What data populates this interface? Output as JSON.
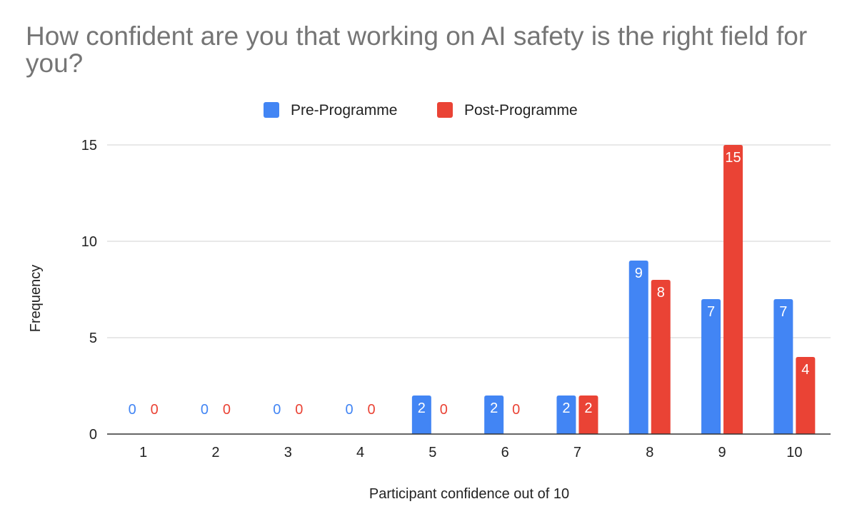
{
  "chart_data": {
    "type": "bar",
    "title": "How confident are you that working on AI safety is the right field for you?",
    "xlabel": "Participant confidence out of 10",
    "ylabel": "Frequency",
    "categories": [
      "1",
      "2",
      "3",
      "4",
      "5",
      "6",
      "7",
      "8",
      "9",
      "10"
    ],
    "series": [
      {
        "name": "Pre-Programme",
        "color": "#4285f4",
        "values": [
          0,
          0,
          0,
          0,
          2,
          2,
          2,
          9,
          7,
          7
        ]
      },
      {
        "name": "Post-Programme",
        "color": "#ea4335",
        "values": [
          0,
          0,
          0,
          0,
          0,
          0,
          2,
          8,
          15,
          4
        ]
      }
    ],
    "ylim": [
      0,
      15
    ],
    "yticks": [
      "0",
      "5",
      "10",
      "15"
    ],
    "grid": true,
    "legend_position": "top",
    "data_labels": true
  }
}
